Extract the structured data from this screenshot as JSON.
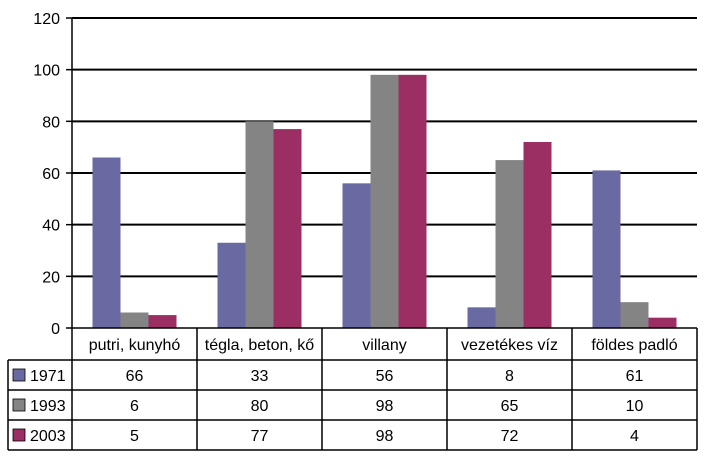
{
  "chart_data": {
    "type": "bar",
    "title": "",
    "xlabel": "",
    "ylabel": "",
    "ylim": [
      0,
      120
    ],
    "yticks": [
      0,
      20,
      40,
      60,
      80,
      100,
      120
    ],
    "grid": true,
    "legend": "data-table",
    "categories": [
      "putri, kunyhó",
      "tégla, beton, kő",
      "villany",
      "vezetékes víz",
      "földes padló"
    ],
    "series": [
      {
        "name": "1971",
        "color": "#6a6aa2",
        "values": [
          66,
          33,
          56,
          8,
          61
        ]
      },
      {
        "name": "1993",
        "color": "#848484",
        "values": [
          6,
          80,
          98,
          65,
          10
        ]
      },
      {
        "name": "2003",
        "color": "#9b2f63",
        "values": [
          5,
          77,
          98,
          72,
          4
        ]
      }
    ]
  }
}
